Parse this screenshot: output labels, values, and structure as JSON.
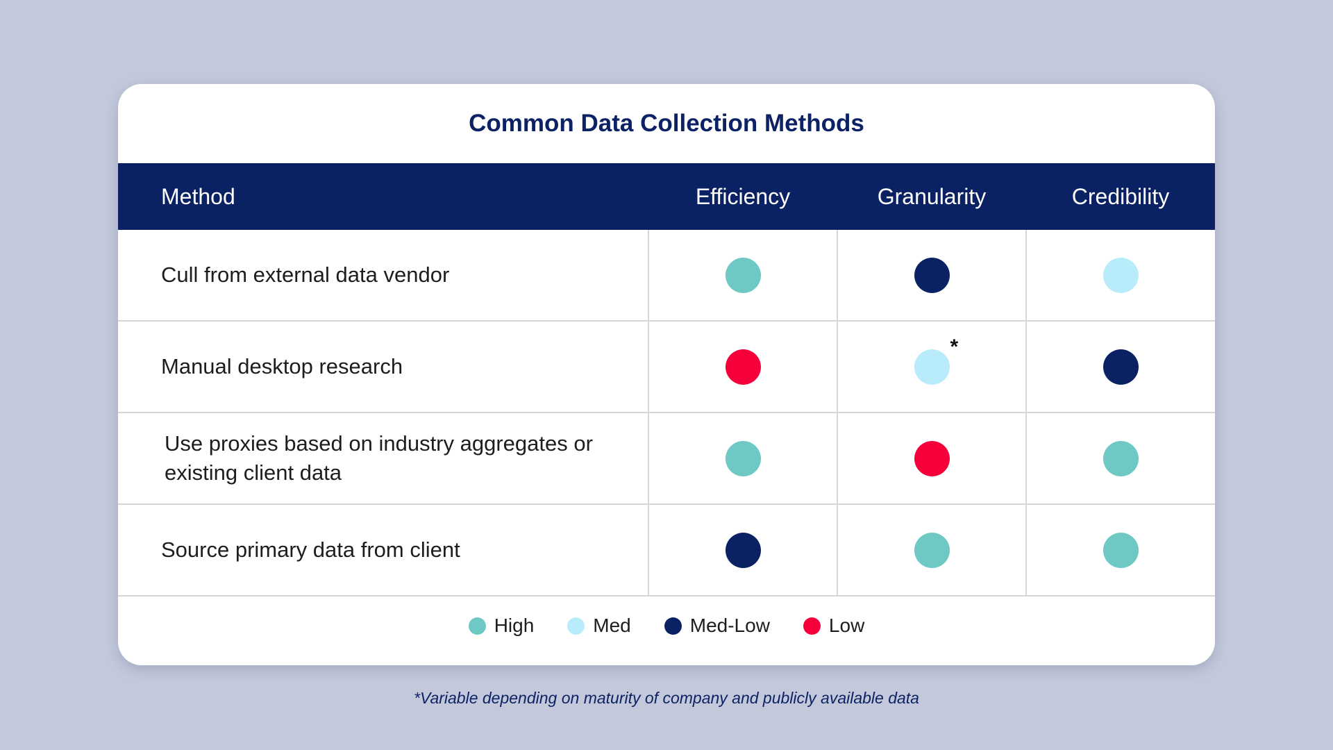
{
  "title": "Common Data Collection Methods",
  "headers": {
    "method": "Method",
    "efficiency": "Efficiency",
    "granularity": "Granularity",
    "credibility": "Credibility"
  },
  "colors": {
    "high": "#6ec9c4",
    "med": "#b9ecfb",
    "medlow": "#0a2263",
    "low": "#f5003a"
  },
  "rows": [
    {
      "method": "Cull from external data vendor",
      "efficiency": "high",
      "granularity": "medlow",
      "credibility": "med"
    },
    {
      "method": "Manual desktop research",
      "efficiency": "low",
      "granularity": "med",
      "credibility": "medlow",
      "granularity_note": "*"
    },
    {
      "method": "Use proxies based on industry aggregates or existing client data",
      "efficiency": "high",
      "granularity": "low",
      "credibility": "high"
    },
    {
      "method": "Source primary data from client",
      "efficiency": "medlow",
      "granularity": "high",
      "credibility": "high"
    }
  ],
  "legend": {
    "high": "High",
    "med": "Med",
    "medlow": "Med-Low",
    "low": "Low"
  },
  "footnote": "*Variable depending on maturity of company and publicly available data"
}
